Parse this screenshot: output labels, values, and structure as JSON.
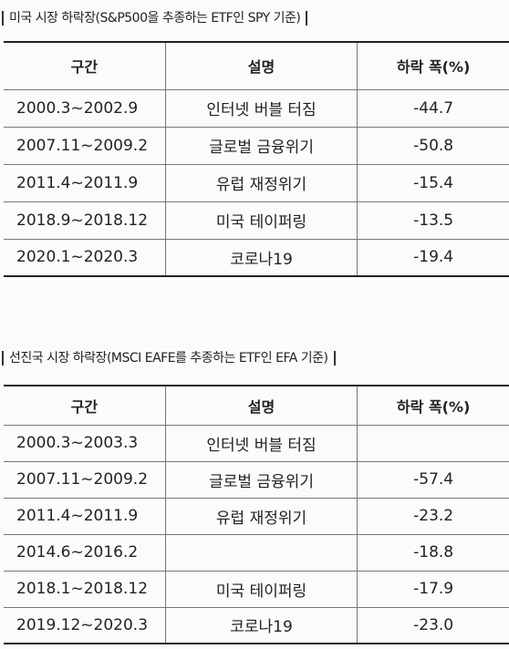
{
  "sections": [
    {
      "title": "미국 시장 하락장(S&P500을 추종하는 ETF인 SPY 기준)",
      "table": {
        "header": [
          "구간",
          "설명",
          "하락 폭(%)"
        ],
        "rows": [
          [
            "2000.3~2002.9",
            "인터넷 버블 터짐",
            "-44.7"
          ],
          [
            "2007.11~2009.2",
            "글로벌 금융위기",
            "-50.8"
          ],
          [
            "2011.4~2011.9",
            "유럽 재정위기",
            "-15.4"
          ],
          [
            "2018.9~2018.12",
            "미국 테이퍼링",
            "-13.5"
          ],
          [
            "2020.1~2020.3",
            "코로나19",
            "-19.4"
          ]
        ]
      }
    },
    {
      "title": "선진국 시장 하락장(MSCI EAFE를 추종하는 ETF인 EFA 기준)",
      "table": {
        "header": [
          "구간",
          "설명",
          "하락 폭(%)"
        ],
        "rows": [
          [
            "2000.3~2003.3",
            "인터넷 버블 터짐",
            null
          ],
          [
            "2007.11~2009.2",
            "글로벌 금융위기",
            "-57.4"
          ],
          [
            "2011.4~2011.9",
            "유럽 재정위기",
            "-23.2"
          ],
          [
            "2014.6~2016.2",
            null,
            "-18.8"
          ],
          [
            "2018.1~2018.12",
            "미국 테이퍼링",
            "-17.9"
          ],
          [
            "2019.12~2020.3",
            "코로나19",
            "-23.0"
          ]
        ]
      }
    }
  ]
}
